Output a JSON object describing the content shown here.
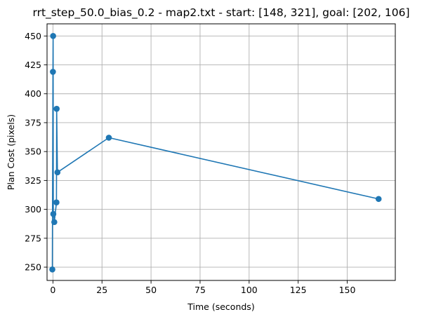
{
  "chart_data": {
    "type": "line",
    "title": "rrt_step_50.0_bias_0.2 - map2.txt - start: [148, 321], goal: [202, 106]",
    "xlabel": "Time (seconds)",
    "ylabel": "Plan Cost (pixels)",
    "xlim": [
      -3.0,
      174.5
    ],
    "ylim": [
      238.5,
      460.5
    ],
    "xticks": [
      0,
      25,
      50,
      75,
      100,
      125,
      150
    ],
    "yticks": [
      250,
      275,
      300,
      325,
      350,
      375,
      400,
      425,
      450
    ],
    "grid": true,
    "series": [
      {
        "color": "#1f77b4",
        "marker": "circle",
        "x": [
          -0.3,
          0.0,
          0.1,
          0.2,
          0.7,
          1.8,
          1.9,
          2.3,
          28.5,
          166.0
        ],
        "y": [
          248,
          419,
          450,
          296,
          289,
          306,
          387,
          332,
          362,
          309
        ]
      }
    ]
  }
}
